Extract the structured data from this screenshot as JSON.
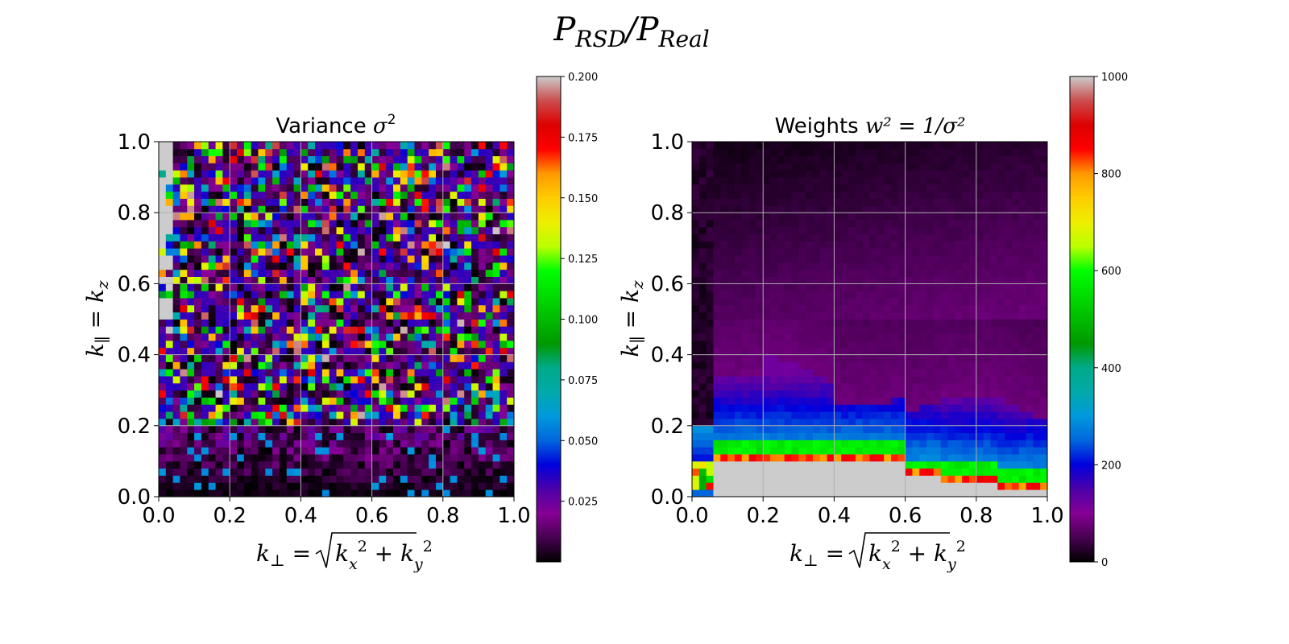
{
  "figure": {
    "suptitle_main": "P",
    "suptitle_num_sub": "RSD",
    "suptitle_slash": "/P",
    "suptitle_den_sub": "Real"
  },
  "chart_data": [
    {
      "type": "heatmap",
      "title_text": "Variance ",
      "title_math": "σ",
      "title_sup": "2",
      "xlabel": "k⊥ = √(k_x² + k_y²)",
      "ylabel": "k∥ = k_z",
      "xlim": [
        0.0,
        1.0
      ],
      "ylim": [
        0.0,
        1.0
      ],
      "xticks": [
        "0.0",
        "0.2",
        "0.4",
        "0.6",
        "0.8",
        "1.0"
      ],
      "yticks": [
        "0.0",
        "0.2",
        "0.4",
        "0.6",
        "0.8",
        "1.0"
      ],
      "grid": true,
      "bins": [
        50,
        50
      ],
      "colormap": "nipy_spectral",
      "colorbar": {
        "range": [
          0.0,
          0.2
        ],
        "ticks": [
          "0.025",
          "0.050",
          "0.075",
          "0.100",
          "0.125",
          "0.150",
          "0.175",
          "0.200"
        ],
        "tick_values": [
          0.025,
          0.05,
          0.075,
          0.1,
          0.125,
          0.15,
          0.175,
          0.2
        ]
      },
      "pattern": "noisy; near 0 for k∥ < 0.2, mostly 0.01–0.2 above; saturated (>0.2) column near k⊥ < 0.05 for k∥ > 0.5"
    },
    {
      "type": "heatmap",
      "title_text": "Weights ",
      "title_math": "w² = 1/σ²",
      "xlabel": "k⊥ = √(k_x² + k_y²)",
      "ylabel": "k∥ = k_z",
      "xlim": [
        0.0,
        1.0
      ],
      "ylim": [
        0.0,
        1.0
      ],
      "xticks": [
        "0.0",
        "0.2",
        "0.4",
        "0.6",
        "0.8",
        "1.0"
      ],
      "yticks": [
        "0.0",
        "0.2",
        "0.4",
        "0.6",
        "0.8",
        "1.0"
      ],
      "grid": true,
      "bins": [
        50,
        50
      ],
      "colormap": "nipy_spectral",
      "colorbar": {
        "range": [
          0,
          1000
        ],
        "ticks": [
          "0",
          "200",
          "400",
          "600",
          "800",
          "1000"
        ],
        "tick_values": [
          0,
          200,
          400,
          600,
          800,
          1000
        ]
      },
      "pattern": "saturated (>1000) for k∥ below ~0.1; band of 150–900 near 0.1–0.3; ~40–90 for k∥ 0.25–0.5; near 0 above; near 0 for k⊥ < 0.05"
    }
  ]
}
